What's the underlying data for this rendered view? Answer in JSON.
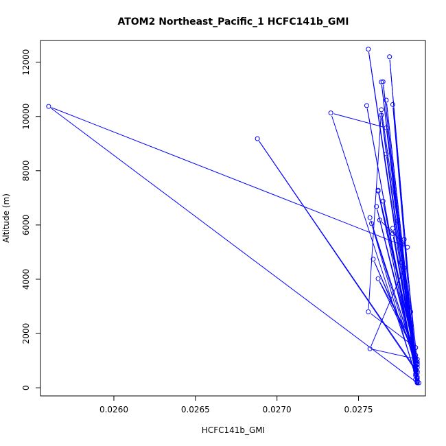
{
  "chart_data": {
    "type": "line",
    "title": "ATOM2 Northeast_Pacific_1 HCFC141b_GMI",
    "xlabel": "HCFC141b_GMI",
    "ylabel": "Altitude (m)",
    "xlim": [
      0.02555,
      0.02791
    ],
    "ylim": [
      -300,
      12800
    ],
    "x_ticks": [
      0.026,
      0.0265,
      0.027,
      0.0275
    ],
    "x_tick_labels": [
      "0.0260",
      "0.0265",
      "0.0270",
      "0.0275"
    ],
    "y_ticks": [
      0,
      2000,
      4000,
      6000,
      8000,
      10000,
      12000
    ],
    "y_tick_labels": [
      "0",
      "2000",
      "4000",
      "6000",
      "8000",
      "10000",
      "12000"
    ],
    "grid": false,
    "legend": "none",
    "line_color": "#0000ff",
    "markers": "open-circle",
    "series": [
      {
        "points": [
          [
            0.02786,
            200
          ],
          [
            0.02787,
            180
          ],
          [
            0.02756,
            12480
          ],
          [
            0.02786,
            230
          ],
          [
            0.02769,
            12200
          ],
          [
            0.02786,
            260
          ],
          [
            0.02765,
            11280
          ],
          [
            0.02785,
            300
          ],
          [
            0.02764,
            11270
          ],
          [
            0.02786,
            350
          ],
          [
            0.02767,
            10600
          ],
          [
            0.02786,
            400
          ],
          [
            0.02771,
            10440
          ],
          [
            0.02785,
            450
          ],
          [
            0.02755,
            10400
          ],
          [
            0.02785,
            500
          ],
          [
            0.02733,
            10130
          ],
          [
            0.02767,
            9580
          ],
          [
            0.02786,
            550
          ],
          [
            0.02688,
            9180
          ],
          [
            0.02786,
            600
          ],
          [
            0.02764,
            10050
          ],
          [
            0.02767,
            8620
          ],
          [
            0.02785,
            650
          ],
          [
            0.02762,
            7250
          ],
          [
            0.02785,
            700
          ],
          [
            0.02765,
            6880
          ],
          [
            0.02786,
            750
          ],
          [
            0.02761,
            6680
          ],
          [
            0.02785,
            800
          ],
          [
            0.02757,
            6270
          ],
          [
            0.02786,
            850
          ],
          [
            0.02774,
            6150
          ],
          [
            0.02771,
            5880
          ],
          [
            0.02785,
            900
          ],
          [
            0.02771,
            5680
          ],
          [
            0.02786,
            950
          ],
          [
            0.02778,
            5470
          ],
          [
            0.02776,
            4620
          ],
          [
            0.02785,
            1000
          ],
          [
            0.02763,
            6180
          ],
          [
            0.0278,
            5180
          ],
          [
            0.0256,
            10370
          ],
          [
            0.02786,
            180
          ],
          [
            0.02758,
            6050
          ],
          [
            0.02785,
            1100
          ],
          [
            0.02759,
            4740
          ],
          [
            0.02785,
            1200
          ],
          [
            0.02762,
            4020
          ],
          [
            0.02785,
            1480
          ],
          [
            0.02756,
            2800
          ],
          [
            0.02764,
            10250
          ],
          [
            0.02782,
            2800
          ],
          [
            0.02778,
            4420
          ],
          [
            0.02757,
            1440
          ],
          [
            0.02786,
            1050
          ],
          [
            0.02762,
            7280
          ],
          [
            0.02786,
            880
          ],
          [
            0.02785,
            620
          ],
          [
            0.02786,
            190
          ]
        ]
      }
    ]
  }
}
